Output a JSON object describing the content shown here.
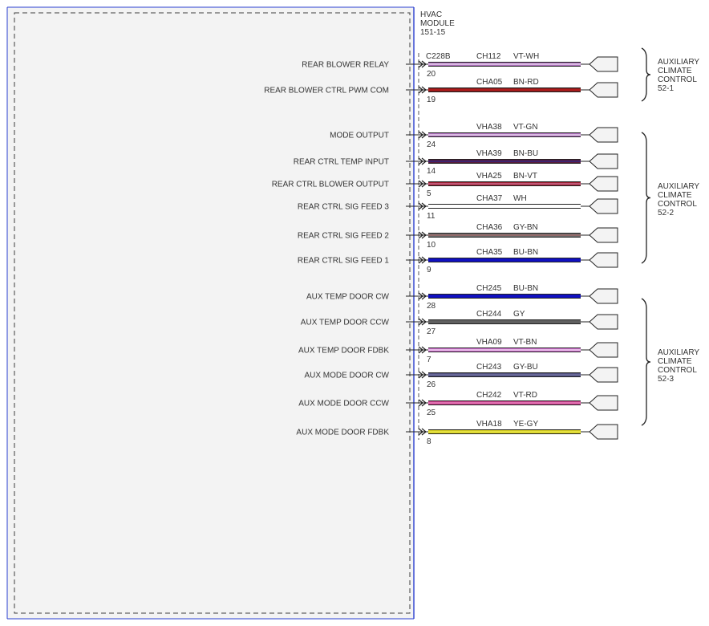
{
  "module": {
    "title_lines": [
      "HVAC",
      "MODULE",
      "151-15"
    ],
    "connector": "C228B"
  },
  "circuits": [
    {
      "signal": "REAR BLOWER RELAY",
      "pin": "20",
      "circuit": "CH112",
      "color_code": "VT-WH",
      "wire_color": "#b070c0",
      "stripe": "#ffffff"
    },
    {
      "signal": "REAR BLOWER CTRL PWM COM",
      "pin": "19",
      "circuit": "CHA05",
      "color_code": "BN-RD",
      "wire_color": "#8b1a1a",
      "stripe": "#d02020"
    },
    {
      "signal": "MODE OUTPUT",
      "pin": "24",
      "circuit": "VHA38",
      "color_code": "VT-GN",
      "wire_color": "#b070c0",
      "stripe": "#ffffff"
    },
    {
      "signal": "REAR CTRL TEMP INPUT",
      "pin": "14",
      "circuit": "VHA39",
      "color_code": "BN-BU",
      "wire_color": "#5a1a3a",
      "stripe": "#2030a0"
    },
    {
      "signal": "REAR CTRL BLOWER OUTPUT",
      "pin": "5",
      "circuit": "VHA25",
      "color_code": "BN-VT",
      "wire_color": "#a02030",
      "stripe": "#e090c0"
    },
    {
      "signal": "REAR CTRL SIG FEED 3",
      "pin": "11",
      "circuit": "CHA37",
      "color_code": "WH",
      "wire_color": "#ffffff",
      "stripe": "#ffffff"
    },
    {
      "signal": "REAR CTRL SIG FEED 2",
      "pin": "10",
      "circuit": "CHA36",
      "color_code": "GY-BN",
      "wire_color": "#707070",
      "stripe": "#b06060"
    },
    {
      "signal": "REAR CTRL SIG FEED 1",
      "pin": "9",
      "circuit": "CHA35",
      "color_code": "BU-BN",
      "wire_color": "#1010c0",
      "stripe": "#1010c0"
    },
    {
      "signal": "AUX TEMP DOOR CW",
      "pin": "28",
      "circuit": "CH245",
      "color_code": "BU-BN",
      "wire_color": "#1010c0",
      "stripe": "#1010c0"
    },
    {
      "signal": "AUX TEMP DOOR CCW",
      "pin": "27",
      "circuit": "CH244",
      "color_code": "GY",
      "wire_color": "#606060",
      "stripe": "#606060"
    },
    {
      "signal": "AUX TEMP DOOR FDBK",
      "pin": "7",
      "circuit": "VHA09",
      "color_code": "VT-BN",
      "wire_color": "#d070d0",
      "stripe": "#ffffff"
    },
    {
      "signal": "AUX MODE DOOR CW",
      "pin": "26",
      "circuit": "CH243",
      "color_code": "GY-BU",
      "wire_color": "#505080",
      "stripe": "#8080b0"
    },
    {
      "signal": "AUX MODE DOOR CCW",
      "pin": "25",
      "circuit": "CH242",
      "color_code": "VT-RD",
      "wire_color": "#d04090",
      "stripe": "#f0a0d0"
    },
    {
      "signal": "AUX MODE DOOR FDBK",
      "pin": "8",
      "circuit": "VHA18",
      "color_code": "YE-GY",
      "wire_color": "#d8d020",
      "stripe": "#f0f060"
    }
  ],
  "controls": [
    {
      "lines": [
        "AUXILIARY",
        "CLIMATE",
        "CONTROL",
        "52-1"
      ]
    },
    {
      "lines": [
        "AUXILIARY",
        "CLIMATE",
        "CONTROL",
        "52-2"
      ]
    },
    {
      "lines": [
        "AUXILIARY",
        "CLIMATE",
        "CONTROL",
        "52-3"
      ]
    }
  ],
  "colors": {
    "module_fill": "#f3f3f3",
    "module_border": "#3c3c3c",
    "module_edge": "#2a3fd0",
    "connector_dash": "#555555",
    "text": "#333333"
  }
}
